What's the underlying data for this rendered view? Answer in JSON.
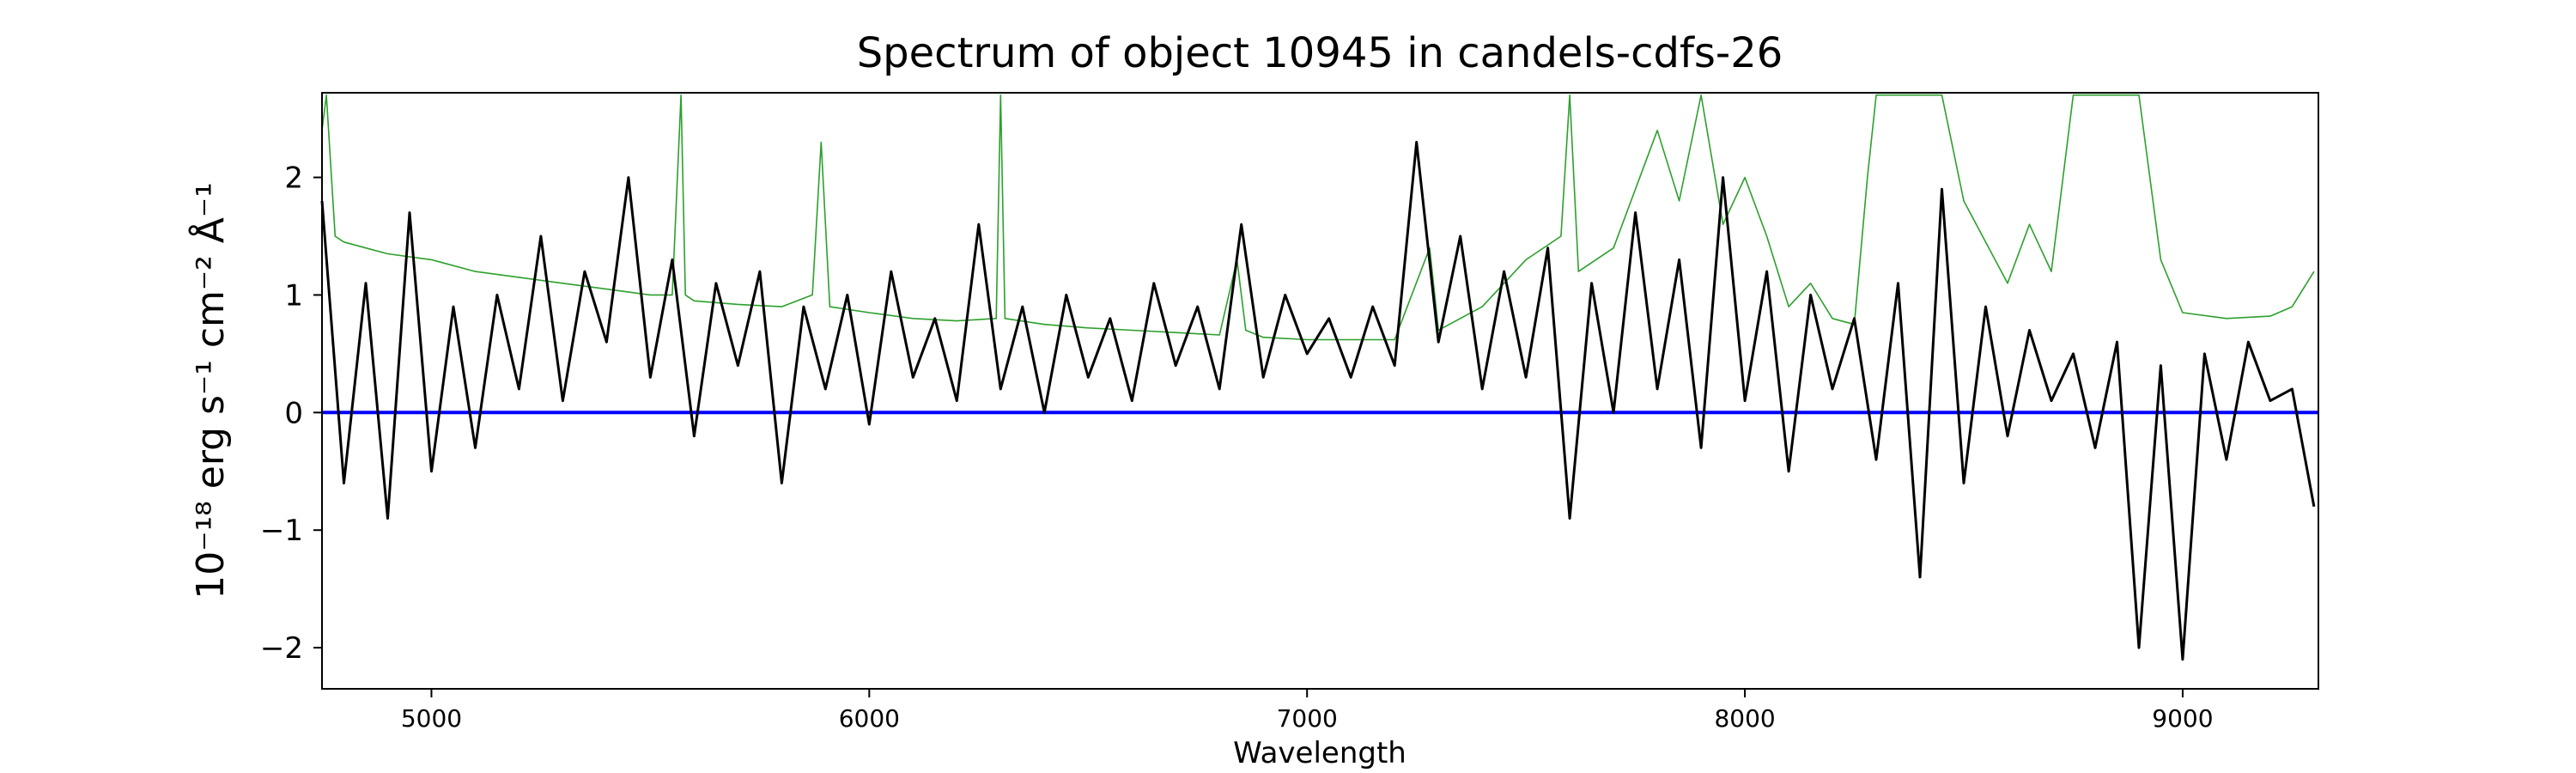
{
  "chart_data": {
    "type": "line",
    "title": "Spectrum of object 10945 in candels-cdfs-26",
    "xlabel": "Wavelength",
    "ylabel": "10⁻¹⁸ erg s⁻¹ cm⁻² Å⁻¹",
    "xlim": [
      4750,
      9310
    ],
    "ylim": [
      -2.35,
      2.72
    ],
    "x_ticks": [
      5000,
      6000,
      7000,
      8000,
      9000
    ],
    "y_ticks": [
      -2,
      -1,
      0,
      1,
      2
    ],
    "grid": false,
    "legend": "none",
    "colors": {
      "flux": "#000000",
      "noise": "#2ca02c",
      "zero": "#0000ff"
    },
    "series": [
      {
        "role": "flux",
        "x": [
          4750,
          4800,
          4850,
          4900,
          4950,
          5000,
          5050,
          5100,
          5150,
          5200,
          5250,
          5300,
          5350,
          5400,
          5450,
          5500,
          5550,
          5600,
          5650,
          5700,
          5750,
          5800,
          5850,
          5900,
          5950,
          6000,
          6050,
          6100,
          6150,
          6200,
          6250,
          6300,
          6350,
          6400,
          6450,
          6500,
          6550,
          6600,
          6650,
          6700,
          6750,
          6800,
          6850,
          6900,
          6950,
          7000,
          7050,
          7100,
          7150,
          7200,
          7250,
          7300,
          7350,
          7400,
          7450,
          7500,
          7550,
          7600,
          7650,
          7700,
          7750,
          7800,
          7850,
          7900,
          7950,
          8000,
          8050,
          8100,
          8150,
          8200,
          8250,
          8300,
          8350,
          8400,
          8450,
          8500,
          8550,
          8600,
          8650,
          8700,
          8750,
          8800,
          8850,
          8900,
          8950,
          9000,
          9050,
          9100,
          9150,
          9200,
          9250,
          9300
        ],
        "y": [
          1.8,
          -0.6,
          1.1,
          -0.9,
          1.7,
          -0.5,
          0.9,
          -0.3,
          1.0,
          0.2,
          1.5,
          0.1,
          1.2,
          0.6,
          2.0,
          0.3,
          1.3,
          -0.2,
          1.1,
          0.4,
          1.2,
          -0.6,
          0.9,
          0.2,
          1.0,
          -0.1,
          1.2,
          0.3,
          0.8,
          0.1,
          1.6,
          0.2,
          0.9,
          0.0,
          1.0,
          0.3,
          0.8,
          0.1,
          1.1,
          0.4,
          0.9,
          0.2,
          1.6,
          0.3,
          1.0,
          0.5,
          0.8,
          0.3,
          0.9,
          0.4,
          2.3,
          0.6,
          1.5,
          0.2,
          1.2,
          0.3,
          1.4,
          -0.9,
          1.1,
          0.0,
          1.7,
          0.2,
          1.3,
          -0.3,
          2.0,
          0.1,
          1.2,
          -0.5,
          1.0,
          0.2,
          0.8,
          -0.4,
          1.1,
          -1.4,
          1.9,
          -0.6,
          0.9,
          -0.2,
          0.7,
          0.1,
          0.5,
          -0.3,
          0.6,
          -2.0,
          0.4,
          -2.1,
          0.5,
          -0.4,
          0.6,
          0.1,
          0.2,
          -0.8
        ]
      },
      {
        "role": "noise",
        "x": [
          4750,
          4760,
          4780,
          4800,
          4850,
          4900,
          5000,
          5100,
          5200,
          5300,
          5400,
          5500,
          5550,
          5570,
          5580,
          5600,
          5700,
          5800,
          5870,
          5890,
          5910,
          6000,
          6100,
          6200,
          6290,
          6300,
          6310,
          6400,
          6500,
          6600,
          6700,
          6800,
          6840,
          6860,
          6900,
          7000,
          7100,
          7200,
          7280,
          7300,
          7400,
          7500,
          7580,
          7600,
          7620,
          7700,
          7800,
          7850,
          7900,
          7950,
          8000,
          8050,
          8100,
          8150,
          8200,
          8250,
          8280,
          8300,
          8350,
          8400,
          8450,
          8500,
          8600,
          8650,
          8700,
          8750,
          8770,
          8800,
          8850,
          8900,
          8950,
          9000,
          9100,
          9200,
          9250,
          9300
        ],
        "y": [
          2.4,
          2.7,
          1.5,
          1.45,
          1.4,
          1.35,
          1.3,
          1.2,
          1.15,
          1.1,
          1.05,
          1.0,
          1.0,
          2.7,
          1.0,
          0.95,
          0.92,
          0.9,
          1.0,
          2.3,
          0.9,
          0.85,
          0.8,
          0.78,
          0.8,
          2.7,
          0.8,
          0.75,
          0.72,
          0.7,
          0.68,
          0.66,
          1.3,
          0.7,
          0.64,
          0.62,
          0.62,
          0.62,
          1.4,
          0.7,
          0.9,
          1.3,
          1.5,
          2.7,
          1.2,
          1.4,
          2.4,
          1.8,
          2.7,
          1.6,
          2.0,
          1.5,
          0.9,
          1.1,
          0.8,
          0.75,
          2.0,
          2.7,
          2.7,
          2.7,
          2.7,
          1.8,
          1.1,
          1.6,
          1.2,
          2.7,
          2.7,
          2.7,
          2.7,
          2.7,
          1.3,
          0.85,
          0.8,
          0.82,
          0.9,
          1.2
        ]
      },
      {
        "role": "zero",
        "x": [
          4750,
          9310
        ],
        "y": [
          0,
          0
        ]
      }
    ]
  }
}
